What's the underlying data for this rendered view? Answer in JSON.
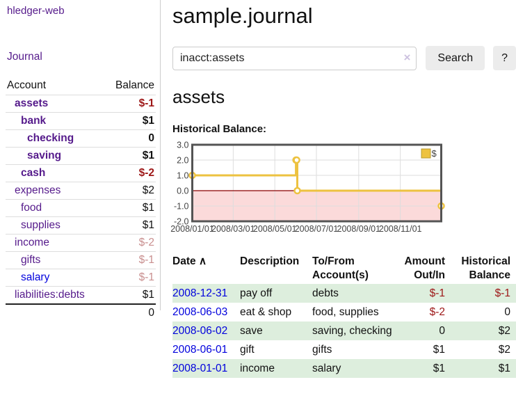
{
  "colors": {
    "accent_purple": "#551a8b",
    "link_blue": "#0101dd",
    "negative_red": "#9d1717",
    "negative_faded": "#c98f8f",
    "row_stripe_green": "#ddeedd",
    "chart_border": "#545454",
    "grid_gray": "#dddddd"
  },
  "app": {
    "title": "hledger-web"
  },
  "sidebar": {
    "journal_link": "Journal",
    "accounts": {
      "header_account": "Account",
      "header_balance": "Balance",
      "rows": [
        {
          "name": "assets",
          "depth": 1,
          "bold": true,
          "balance": "$-1",
          "balance_style": "negative"
        },
        {
          "name": "bank",
          "depth": 2,
          "bold": true,
          "balance": "$1",
          "balance_style": "normal"
        },
        {
          "name": "checking",
          "depth": 3,
          "bold": true,
          "balance": "0",
          "balance_style": "normal"
        },
        {
          "name": "saving",
          "depth": 3,
          "bold": true,
          "balance": "$1",
          "balance_style": "normal"
        },
        {
          "name": "cash",
          "depth": 2,
          "bold": true,
          "balance": "$-2",
          "balance_style": "negative"
        },
        {
          "name": "expenses",
          "depth": 1,
          "bold": false,
          "balance": "$2",
          "balance_style": "normal"
        },
        {
          "name": "food",
          "depth": 2,
          "bold": false,
          "balance": "$1",
          "balance_style": "normal"
        },
        {
          "name": "supplies",
          "depth": 2,
          "bold": false,
          "balance": "$1",
          "balance_style": "normal"
        },
        {
          "name": "income",
          "depth": 1,
          "bold": false,
          "balance": "$-2",
          "balance_style": "negative-faded"
        },
        {
          "name": "gifts",
          "depth": 2,
          "bold": false,
          "balance": "$-1",
          "balance_style": "negative-faded"
        },
        {
          "name": "salary",
          "depth": 2,
          "bold": false,
          "balance": "$-1",
          "balance_style": "negative-faded",
          "unvisited": true
        },
        {
          "name": "liabilities:debts",
          "depth": 1,
          "bold": false,
          "balance": "$1",
          "balance_style": "normal"
        }
      ],
      "total": "0"
    }
  },
  "main": {
    "title": "sample.journal",
    "search": {
      "value": "inacct:assets",
      "clear_icon": "×",
      "button_label": "Search",
      "help_label": "?"
    },
    "account_heading": "assets",
    "register": {
      "headers": {
        "date": "Date",
        "sort_icon": "∧",
        "description": "Description",
        "accounts": "To/From Account(s)",
        "amount": "Amount Out/In",
        "balance": "Historical Balance"
      },
      "rows": [
        {
          "date": "2008-12-31",
          "description": "pay off",
          "accounts": "debts",
          "amount": "$-1",
          "amount_style": "negative",
          "balance": "$-1",
          "balance_style": "negative"
        },
        {
          "date": "2008-06-03",
          "description": "eat & shop",
          "accounts": "food, supplies",
          "amount": "$-2",
          "amount_style": "negative",
          "balance": "0",
          "balance_style": "normal"
        },
        {
          "date": "2008-06-02",
          "description": "save",
          "accounts": "saving, checking",
          "amount": "0",
          "amount_style": "normal",
          "balance": "$2",
          "balance_style": "normal"
        },
        {
          "date": "2008-06-01",
          "description": "gift",
          "accounts": "gifts",
          "amount": "$1",
          "amount_style": "normal",
          "balance": "$2",
          "balance_style": "normal"
        },
        {
          "date": "2008-01-01",
          "description": "income",
          "accounts": "salary",
          "amount": "$1",
          "amount_style": "normal",
          "balance": "$1",
          "balance_style": "normal"
        }
      ]
    }
  },
  "chart_data": {
    "type": "line",
    "step": true,
    "title": "Historical Balance:",
    "series": [
      {
        "name": "$",
        "color": "#edc240",
        "points": [
          [
            "2008-01-01",
            1
          ],
          [
            "2008-06-01",
            2
          ],
          [
            "2008-06-02",
            2
          ],
          [
            "2008-06-03",
            0
          ],
          [
            "2008-12-31",
            -1
          ]
        ]
      }
    ],
    "x_range": [
      "2008-01-01",
      "2008-12-31"
    ],
    "x_ticks": [
      "2008/01/01",
      "2008/03/01",
      "2008/05/01",
      "2008/07/01",
      "2008/09/01",
      "2008/11/01"
    ],
    "y_ticks": [
      3,
      2,
      1,
      0,
      -1,
      -2
    ],
    "ylim": [
      -2,
      3
    ],
    "grid": true,
    "zero_line_color": "#8b0000",
    "negative_region_color": "#fbdada",
    "legend": {
      "position": "top-right",
      "label": "$"
    }
  }
}
